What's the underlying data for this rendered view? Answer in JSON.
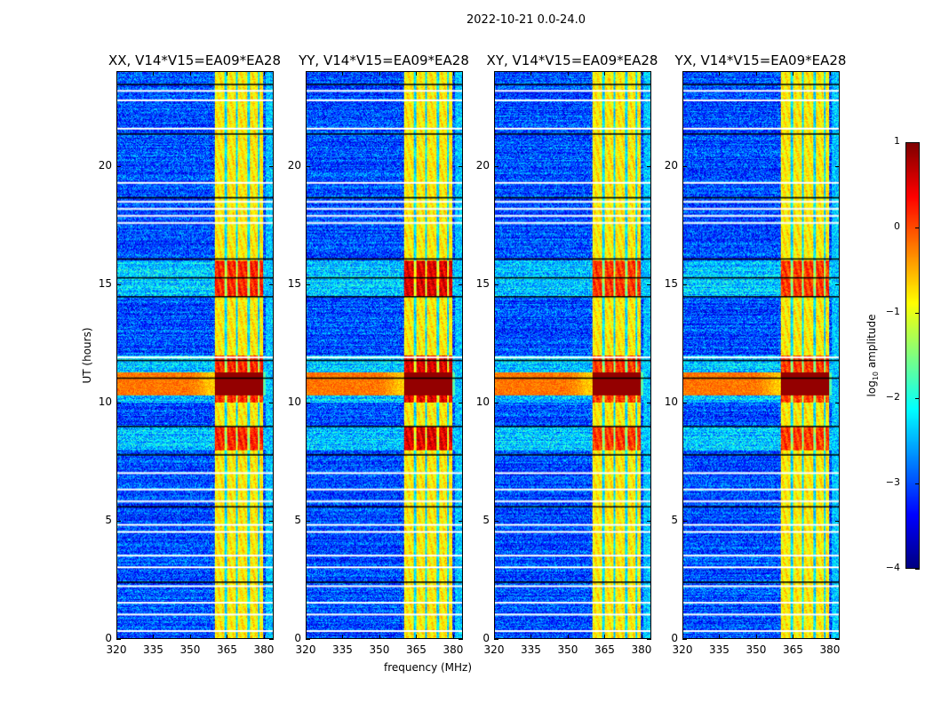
{
  "suptitle": "2022-10-21 0.0-24.0",
  "chart_data": {
    "type": "heatmap",
    "xlabel": "frequency (MHz)",
    "ylabel": "UT (hours)",
    "xlim": [
      320,
      384
    ],
    "ylim": [
      0,
      24
    ],
    "xticks": [
      "320",
      "335",
      "350",
      "365",
      "380"
    ],
    "xtick_values": [
      320,
      335,
      350,
      365,
      380
    ],
    "yticks": [
      "0",
      "5",
      "10",
      "15",
      "20"
    ],
    "ytick_values": [
      0,
      5,
      10,
      15,
      20
    ],
    "colorbar": {
      "label": "log10 amplitude",
      "label_base": "log",
      "label_sub": "10",
      "label_rest": " amplitude",
      "range": [
        -4,
        1
      ],
      "ticks": [
        "1",
        "0",
        "−1",
        "−2",
        "−3",
        "−4"
      ],
      "tick_values": [
        1,
        0,
        -1,
        -2,
        -3,
        -4
      ],
      "colormap": "jet"
    },
    "panels": [
      {
        "title": "XX, V14*V15=EA09*EA28",
        "rfi_gain": 0
      },
      {
        "title": "YY, V14*V15=EA09*EA28",
        "rfi_gain": 0.3
      },
      {
        "title": "XY, V14*V15=EA09*EA28",
        "rfi_gain": -0.1
      },
      {
        "title": "YX, V14*V15=EA09*EA28",
        "rfi_gain": -0.1
      }
    ],
    "background_level": -3.0,
    "rfi_band_mhz": [
      360,
      380
    ],
    "rfi_band_level": -0.8,
    "rfi_gaps_mhz": [
      364.5,
      369,
      374,
      378
    ],
    "strong_rfi_ut": [
      [
        10.0,
        12.0
      ],
      [
        14.5,
        16.0
      ],
      [
        8.0,
        9.0
      ]
    ],
    "broadband_rfi_ut": [
      10.3,
      11.3
    ],
    "flagged_rows_ut": [
      0.3,
      1.0,
      1.5,
      2.2,
      3.0,
      3.5,
      4.5,
      4.8,
      5.8,
      6.3,
      7.0,
      11.9,
      17.6,
      17.9,
      18.2,
      18.5,
      19.3,
      21.6,
      22.8,
      23.2
    ],
    "dark_rows_ut": [
      2.4,
      5.6,
      7.8,
      9.0,
      11.05,
      11.8,
      14.5,
      15.3,
      16.1,
      18.7,
      21.4,
      23.5
    ]
  }
}
